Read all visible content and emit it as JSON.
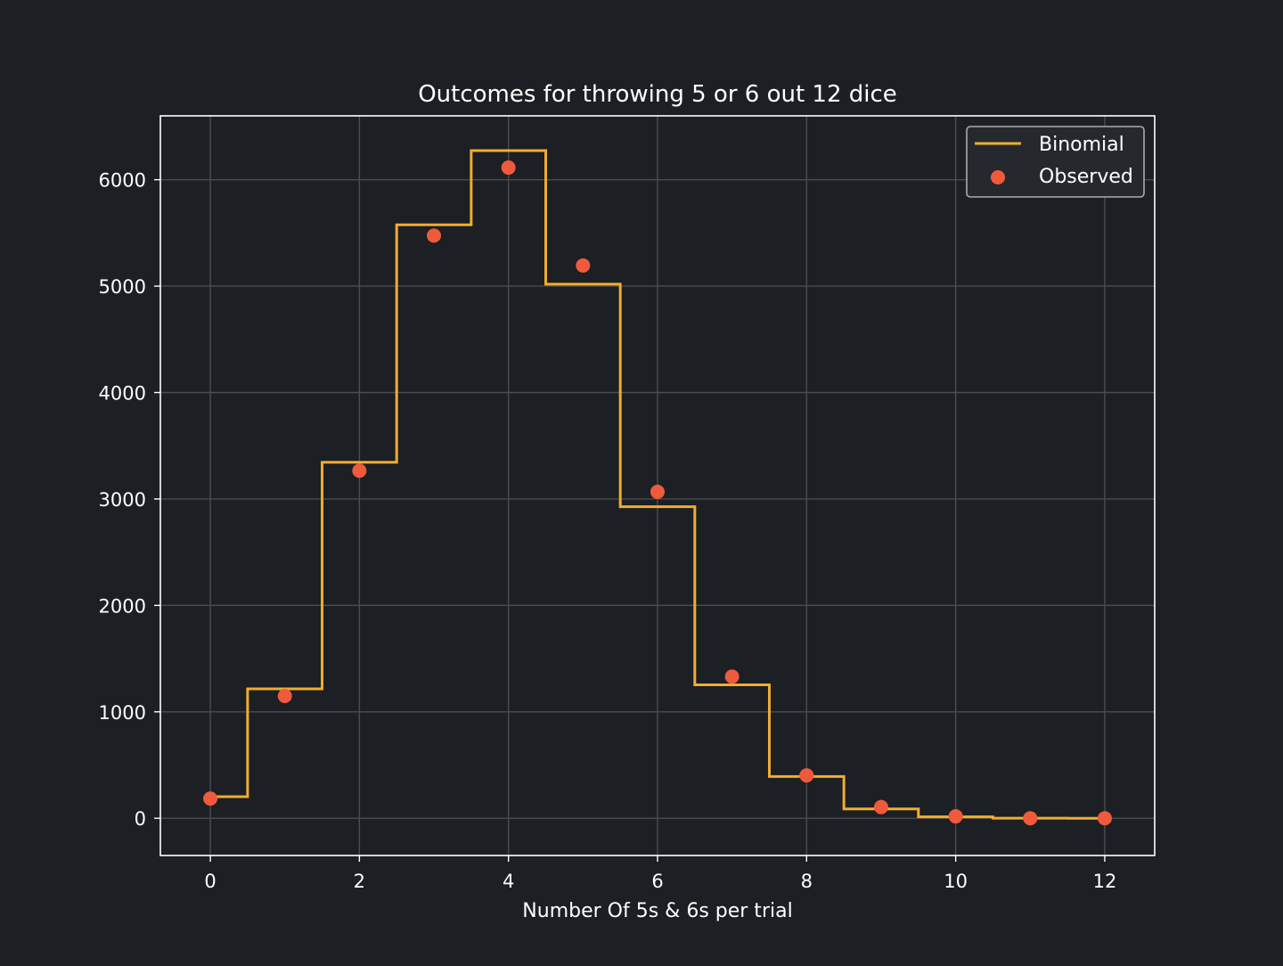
{
  "chart_data": {
    "type": "line",
    "title": "Outcomes for throwing 5 or 6 out 12 dice",
    "xlabel": "Number Of 5s & 6s per trial",
    "ylabel": "",
    "xlim": [
      -0.67,
      12.67
    ],
    "ylim": [
      -350,
      6600
    ],
    "x_ticks": [
      0,
      2,
      4,
      6,
      8,
      10,
      12
    ],
    "y_ticks": [
      0,
      1000,
      2000,
      3000,
      4000,
      5000,
      6000
    ],
    "grid": true,
    "legend_position": "top-right",
    "series": [
      {
        "name": "Binomial",
        "kind": "step",
        "color": "#f0ad30",
        "x": [
          0,
          1,
          2,
          3,
          4,
          5,
          6,
          7,
          8,
          9,
          10,
          11,
          12
        ],
        "values": [
          203,
          1216,
          3345,
          5576,
          6273,
          5018,
          2927,
          1254,
          392,
          87,
          13,
          1,
          0
        ]
      },
      {
        "name": "Observed",
        "kind": "scatter",
        "color": "#f05a3c",
        "x": [
          0,
          1,
          2,
          3,
          4,
          5,
          6,
          7,
          8,
          9,
          10,
          11,
          12
        ],
        "values": [
          185,
          1149,
          3265,
          5475,
          6114,
          5194,
          3067,
          1331,
          403,
          105,
          18,
          0,
          0
        ]
      }
    ]
  },
  "colors": {
    "background": "#1c1f23",
    "axes_frame": "#ffffff",
    "grid": "#4a4c50",
    "text": "#ffffff",
    "legend_border": "#a9abae",
    "legend_background": "#25292d"
  }
}
